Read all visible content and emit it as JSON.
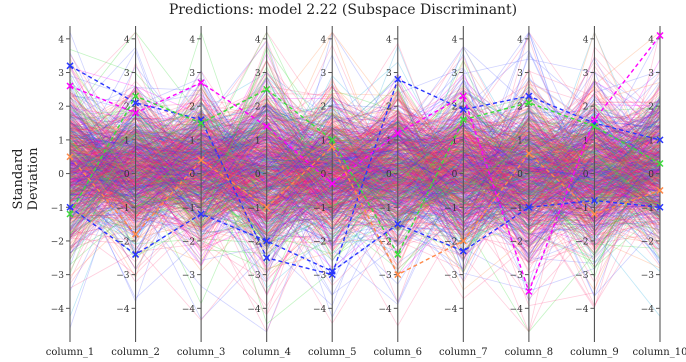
{
  "chart_data": {
    "type": "parallel_coordinates",
    "title": "Predictions: model 2.22 (Subspace Discriminant)",
    "ylabel": "Standard Deviation",
    "xlabel": "",
    "axes": [
      "column_1",
      "column_2",
      "column_3",
      "column_4",
      "column_5",
      "column_6",
      "column_7",
      "column_8",
      "column_9",
      "column_10"
    ],
    "ylim": [
      -5,
      4.5
    ],
    "y_ticks": [
      -4,
      -3,
      -2,
      -1,
      0,
      1,
      2,
      3,
      4
    ],
    "grid": false,
    "legend": "none",
    "class_colors": [
      "#ff1f6a",
      "#2a35ff",
      "#3cdc3c",
      "#ff8a4a",
      "#ff00ff",
      "#2ab0e0"
    ],
    "bulk_band": {
      "center": [
        0.1,
        0.1,
        0.1,
        0.0,
        0.0,
        0.1,
        0.0,
        0.0,
        0.0,
        0.1
      ],
      "spread_sd": [
        1.1,
        1.0,
        0.95,
        1.2,
        1.0,
        1.0,
        1.05,
        1.1,
        1.05,
        1.0
      ]
    },
    "highlighted_lines": [
      {
        "color": "#2a35ff",
        "values": [
          3.2,
          2.1,
          1.6,
          -2.5,
          -3.0,
          2.8,
          1.9,
          2.3,
          1.5,
          1.0
        ]
      },
      {
        "color": "#ff00ff",
        "values": [
          2.6,
          1.8,
          2.7,
          1.4,
          -0.3,
          1.2,
          2.3,
          -3.5,
          1.6,
          4.1
        ]
      },
      {
        "color": "#3cdc3c",
        "values": [
          -1.2,
          2.3,
          1.5,
          2.5,
          1.0,
          -2.4,
          1.6,
          2.1,
          1.4,
          0.3
        ]
      },
      {
        "color": "#ff8a4a",
        "values": [
          0.5,
          -1.8,
          0.4,
          -1.0,
          0.8,
          -3.0,
          -2.0,
          0.6,
          -1.2,
          -0.5
        ]
      },
      {
        "color": "#2a35ff",
        "values": [
          -1.0,
          -2.4,
          -1.2,
          -2.0,
          -2.9,
          -1.5,
          -2.3,
          -1.0,
          -0.8,
          -1.0
        ]
      }
    ]
  }
}
